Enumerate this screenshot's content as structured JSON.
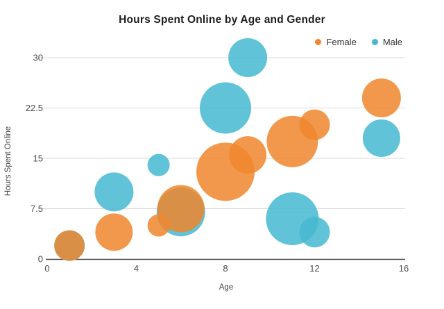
{
  "chart_data": {
    "type": "scatter",
    "subtype": "bubble",
    "title": "Hours Spent Online by Age and Gender",
    "xlabel": "Age",
    "ylabel": "Hours Spent Online",
    "xlim": [
      0,
      16
    ],
    "ylim": [
      0,
      30
    ],
    "x_ticks": [
      0,
      4,
      8,
      12,
      16
    ],
    "y_ticks": [
      0,
      7.5,
      15,
      22.5,
      30
    ],
    "x_tick_labels": [
      "0",
      "4",
      "8",
      "12",
      "16"
    ],
    "y_tick_labels": [
      "0",
      "7.5",
      "15",
      "22.5",
      "30"
    ],
    "grid": true,
    "legend_position": "top-right",
    "series": [
      {
        "name": "Male",
        "color": "#45B8D0",
        "points": [
          {
            "age": 1,
            "hours": 2,
            "r": 22
          },
          {
            "age": 3,
            "hours": 10,
            "r": 28
          },
          {
            "age": 5,
            "hours": 14,
            "r": 16
          },
          {
            "age": 6,
            "hours": 7,
            "r": 35
          },
          {
            "age": 8,
            "hours": 22.5,
            "r": 37
          },
          {
            "age": 9,
            "hours": 30,
            "r": 28
          },
          {
            "age": 11,
            "hours": 6,
            "r": 38
          },
          {
            "age": 12,
            "hours": 4,
            "r": 22
          },
          {
            "age": 15,
            "hours": 18,
            "r": 27
          }
        ]
      },
      {
        "name": "Female",
        "color": "#F0862D",
        "points": [
          {
            "age": 1,
            "hours": 2,
            "r": 22
          },
          {
            "age": 3,
            "hours": 4,
            "r": 27
          },
          {
            "age": 5,
            "hours": 5,
            "r": 16
          },
          {
            "age": 6,
            "hours": 7.5,
            "r": 34
          },
          {
            "age": 8,
            "hours": 13,
            "r": 42
          },
          {
            "age": 9,
            "hours": 15.5,
            "r": 27
          },
          {
            "age": 11,
            "hours": 17.5,
            "r": 37
          },
          {
            "age": 12,
            "hours": 20,
            "r": 22
          },
          {
            "age": 15,
            "hours": 24,
            "r": 28
          }
        ]
      }
    ]
  },
  "legend": {
    "items": [
      {
        "label": "Female",
        "color": "#F0862D"
      },
      {
        "label": "Male",
        "color": "#45B8D0"
      }
    ]
  },
  "style": {
    "gridline_color": "#d9d9d9",
    "axis_line_color": "#424242",
    "tick_label_color": "#4a4a4a",
    "bubble_opacity": 0.85
  }
}
